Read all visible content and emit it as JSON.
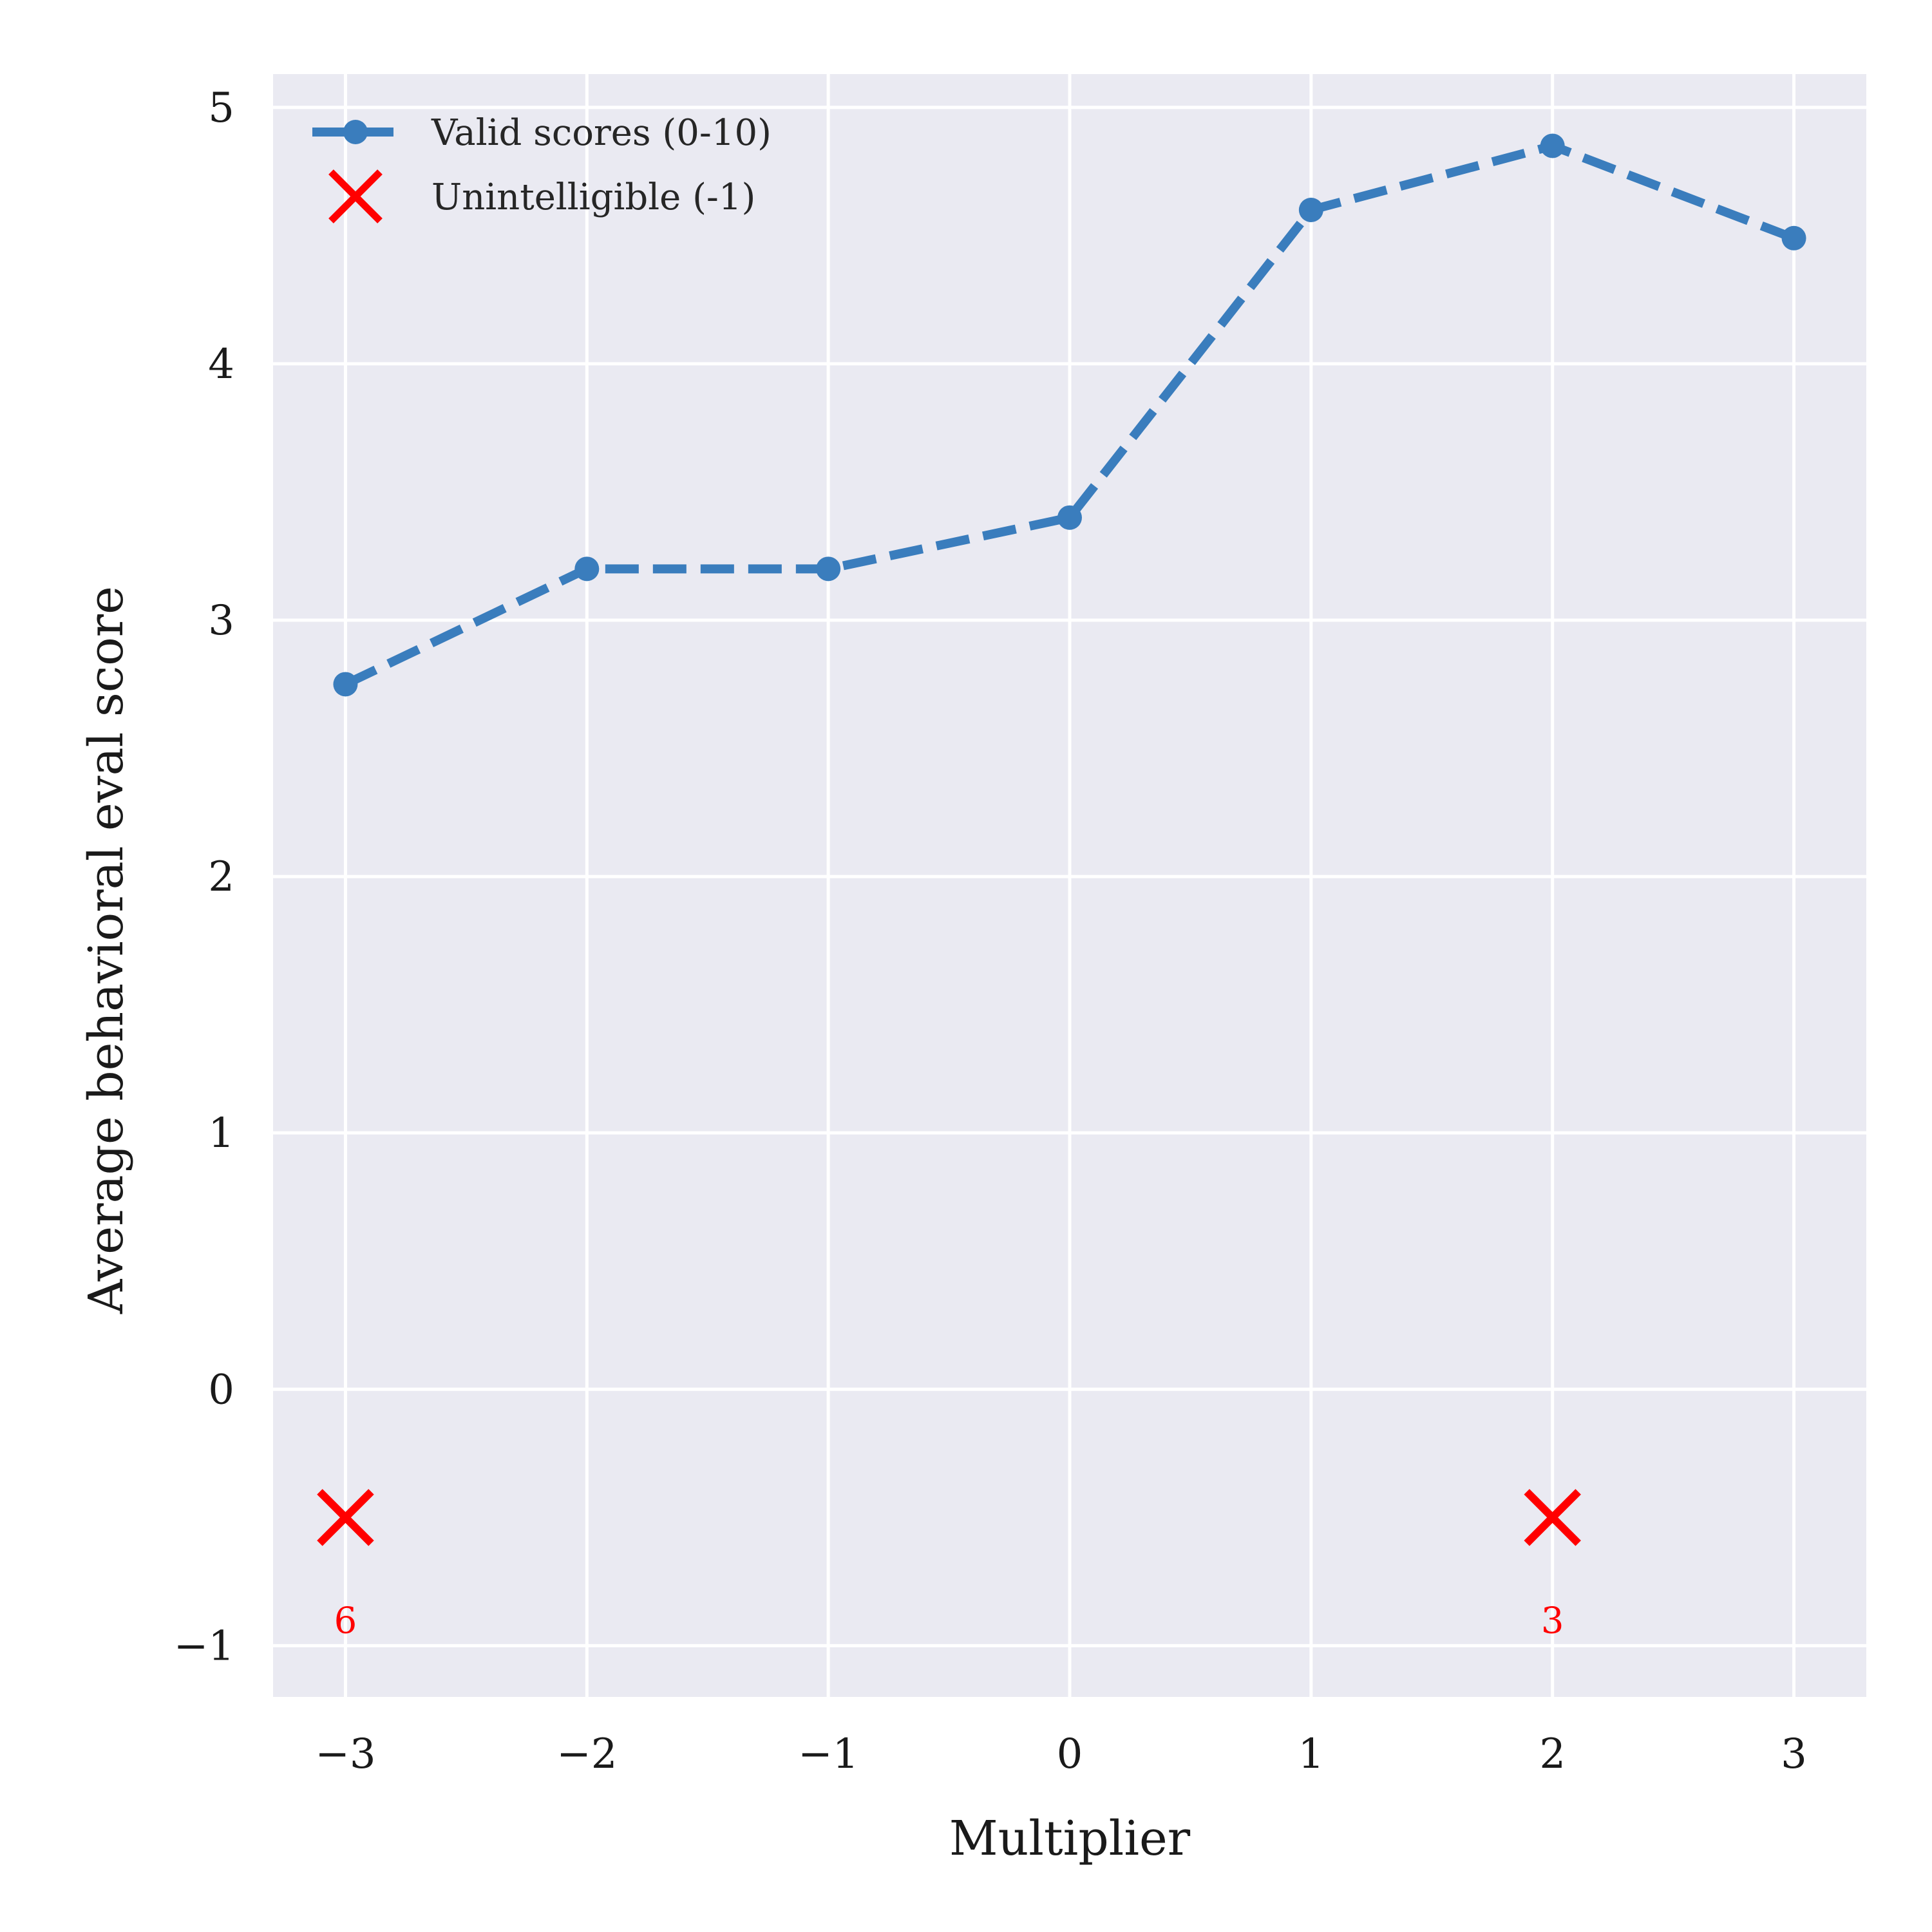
{
  "chart_data": {
    "type": "line",
    "title": "",
    "xlabel": "Multiplier",
    "ylabel": "Average behavioral eval score",
    "xlim": [
      -3.3,
      3.3
    ],
    "ylim": [
      -1.2,
      5.13
    ],
    "x_ticks": [
      -3,
      -2,
      -1,
      0,
      1,
      2,
      3
    ],
    "x_tick_labels": [
      "−3",
      "−2",
      "−1",
      "0",
      "1",
      "2",
      "3"
    ],
    "y_ticks": [
      -1,
      0,
      1,
      2,
      3,
      4,
      5
    ],
    "y_tick_labels": [
      "−1",
      "0",
      "1",
      "2",
      "3",
      "4",
      "5"
    ],
    "grid": true,
    "legend_position": "top-left",
    "series": [
      {
        "name": "Valid scores (0-10)",
        "style": "dashed-line-with-markers",
        "color": "#3a7dbd",
        "x": [
          -3,
          -2,
          -1,
          0,
          1,
          2,
          3
        ],
        "y": [
          2.75,
          3.2,
          3.2,
          3.4,
          4.6,
          4.85,
          4.49
        ]
      },
      {
        "name": "Unintelligible (-1)",
        "style": "x-markers",
        "color": "#ff0000",
        "x": [
          -3,
          2
        ],
        "y": [
          -0.5,
          -0.5
        ],
        "count_labels": [
          "6",
          "3"
        ],
        "count_label_y": [
          -0.9,
          -0.9
        ]
      }
    ]
  },
  "colors": {
    "plot_background": "#eaeaf2",
    "grid": "#ffffff",
    "page_background": "#ffffff"
  }
}
